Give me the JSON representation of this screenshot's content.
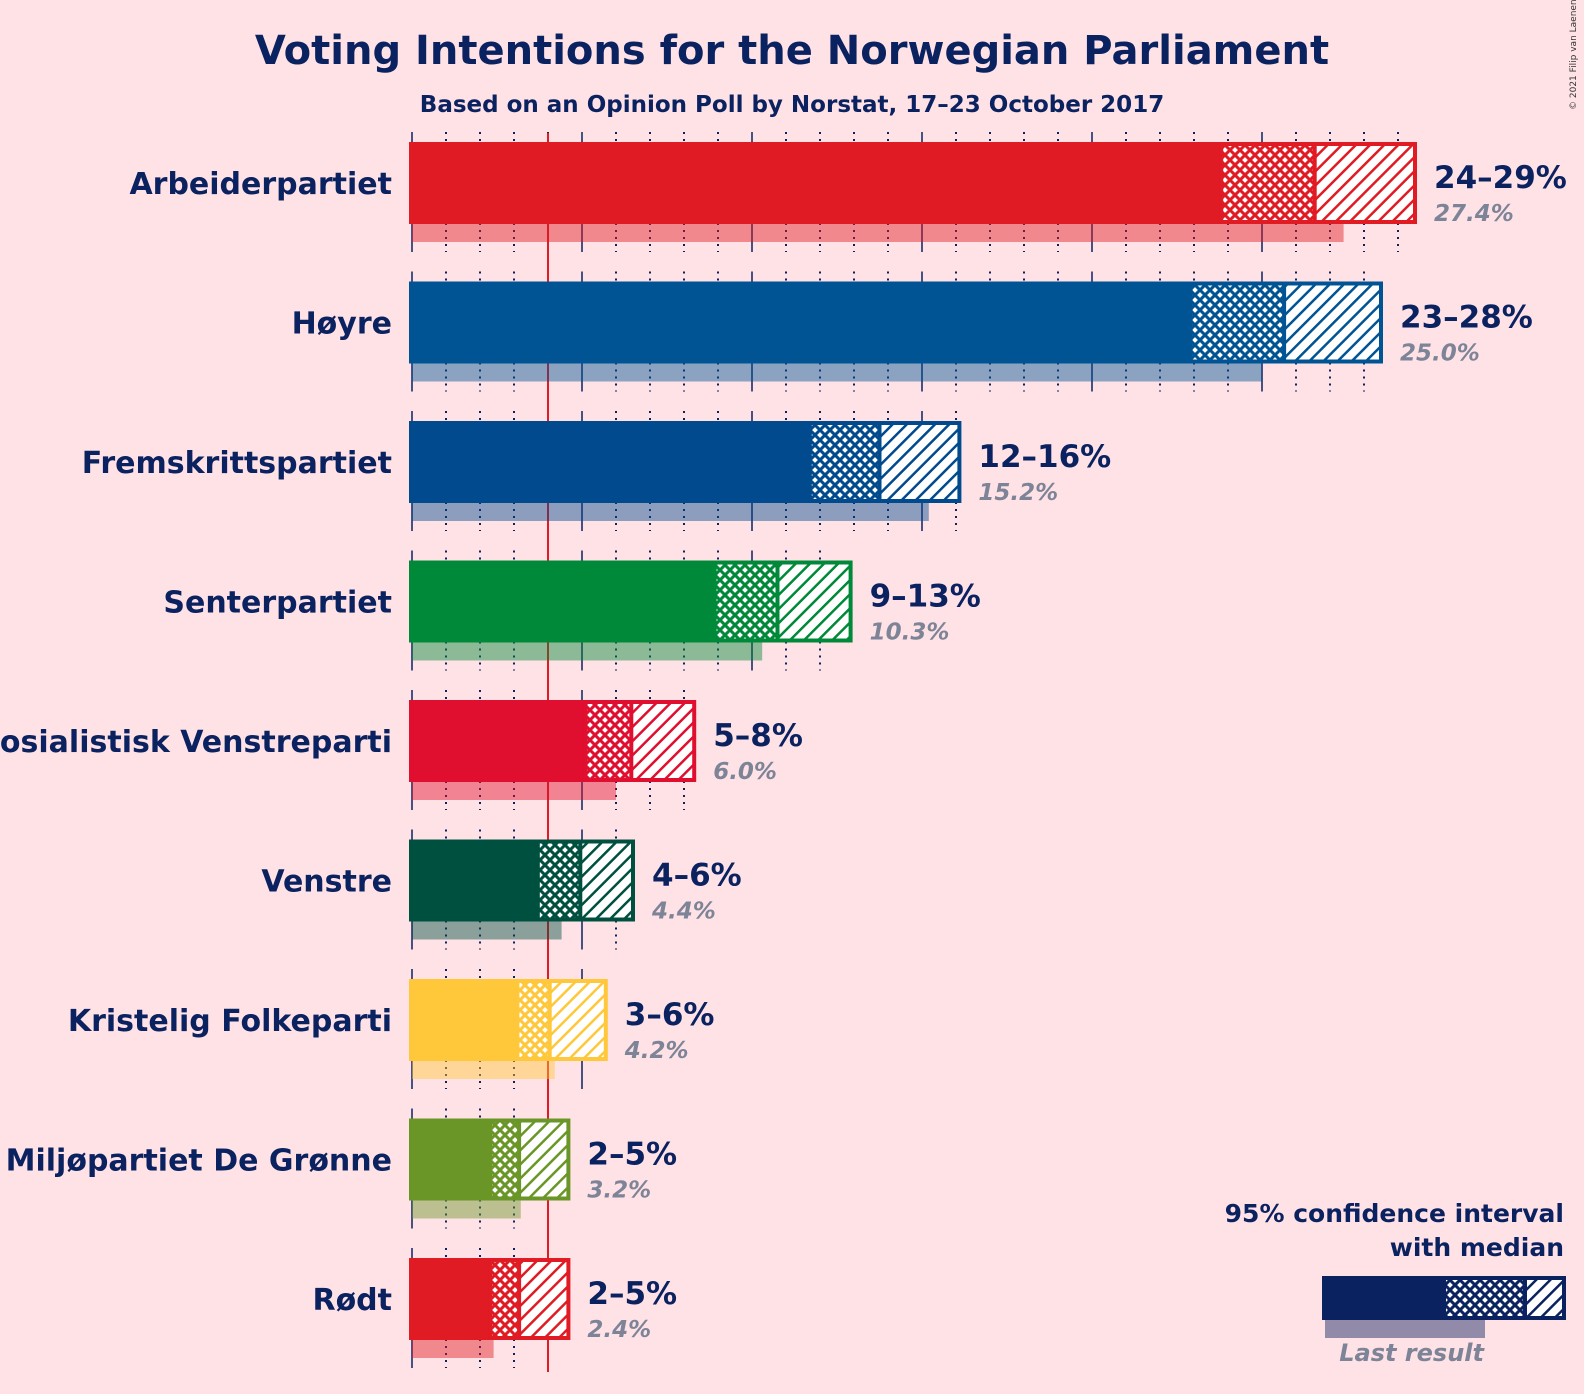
{
  "chart_data": {
    "type": "bar",
    "title": "Voting Intentions for the Norwegian Parliament",
    "subtitle": "Based on an Opinion Poll by Norstat, 17–23 October 2017",
    "copyright": "© 2021 Filip van Laenen",
    "threshold": 4.0,
    "xlim": [
      0,
      30
    ],
    "legend": {
      "line1": "95% confidence interval",
      "line2": "with median",
      "last_label": "Last result",
      "position": "bottom-right"
    },
    "parties": [
      {
        "name": "Arbeiderpartiet",
        "color": "#e01b24",
        "ci_low": 23.8,
        "q_low": 26.5,
        "q_high": 26.6,
        "ci_high": 29.5,
        "range_label": "24–29%",
        "last": 27.4,
        "last_label": "27.4%"
      },
      {
        "name": "Høyre",
        "color": "#005494",
        "ci_low": 22.9,
        "q_low": 25.6,
        "q_high": 25.7,
        "ci_high": 28.5,
        "range_label": "23–28%",
        "last": 25.0,
        "last_label": "25.0%"
      },
      {
        "name": "Fremskrittspartiet",
        "color": "#004a8d",
        "ci_low": 11.7,
        "q_low": 13.7,
        "q_high": 13.8,
        "ci_high": 16.1,
        "range_label": "12–16%",
        "last": 15.2,
        "last_label": "15.2%"
      },
      {
        "name": "Senterpartiet",
        "color": "#008938",
        "ci_low": 8.9,
        "q_low": 10.7,
        "q_high": 10.8,
        "ci_high": 12.9,
        "range_label": "9–13%",
        "last": 10.3,
        "last_label": "10.3%"
      },
      {
        "name": "Sosialistisk Venstreparti",
        "color": "#e00f2f",
        "ci_low": 5.1,
        "q_low": 6.4,
        "q_high": 6.5,
        "ci_high": 8.3,
        "range_label": "5–8%",
        "last": 6.0,
        "last_label": "6.0%"
      },
      {
        "name": "Venstre",
        "color": "#005040",
        "ci_low": 3.7,
        "q_low": 4.9,
        "q_high": 5.0,
        "ci_high": 6.5,
        "range_label": "4–6%",
        "last": 4.4,
        "last_label": "4.4%"
      },
      {
        "name": "Kristelig Folkeparti",
        "color": "#ffc83a",
        "ci_low": 3.1,
        "q_low": 4.0,
        "q_high": 4.1,
        "ci_high": 5.7,
        "range_label": "3–6%",
        "last": 4.2,
        "last_label": "4.2%"
      },
      {
        "name": "Miljøpartiet De Grønne",
        "color": "#6a9627",
        "ci_low": 2.3,
        "q_low": 3.1,
        "q_high": 3.2,
        "ci_high": 4.6,
        "range_label": "2–5%",
        "last": 3.2,
        "last_label": "3.2%"
      },
      {
        "name": "Rødt",
        "color": "#e01b24",
        "ci_low": 2.3,
        "q_low": 3.1,
        "q_high": 3.2,
        "ci_high": 4.6,
        "range_label": "2–5%",
        "last": 2.4,
        "last_label": "2.4%"
      }
    ]
  }
}
